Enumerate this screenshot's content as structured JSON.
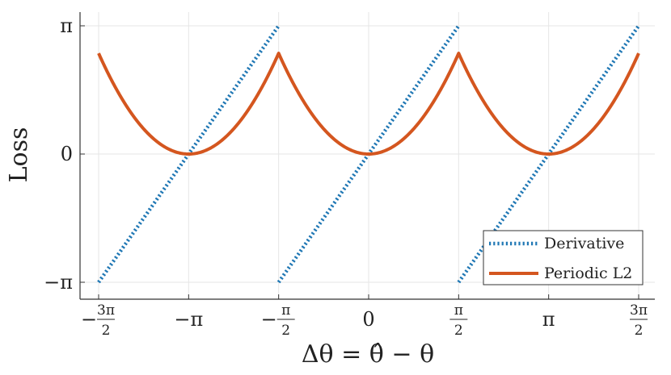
{
  "chart_data": {
    "type": "line",
    "xlabel": "Δθ = θ̂ − θ",
    "ylabel": "Loss",
    "xlim": [
      -4.712389,
      4.712389
    ],
    "ylim": [
      -3.141593,
      3.141593
    ],
    "grid": true,
    "legend_position": "bottom-right",
    "x_ticks": [
      {
        "value": -4.712389,
        "sign": "−",
        "num": "3π",
        "den": "2"
      },
      {
        "value": -3.141593,
        "label": "−π"
      },
      {
        "value": -1.570796,
        "sign": "−",
        "num": "π",
        "den": "2"
      },
      {
        "value": 0,
        "label": "0"
      },
      {
        "value": 1.570796,
        "sign": "",
        "num": "π",
        "den": "2"
      },
      {
        "value": 3.141593,
        "label": "π"
      },
      {
        "value": 4.712389,
        "sign": "",
        "num": "3π",
        "den": "2"
      }
    ],
    "y_ticks": [
      {
        "value": -3.141593,
        "label": "−π"
      },
      {
        "value": 0,
        "label": "0"
      },
      {
        "value": 3.141593,
        "label": "π"
      }
    ],
    "series": [
      {
        "name": "Derivative",
        "color": "#1f77b4",
        "style": "dotted",
        "segments": [
          [
            [
              -4.712389,
              -3.141593
            ],
            [
              -1.570796,
              3.141593
            ]
          ],
          [
            [
              -1.570796,
              -3.141593
            ],
            [
              1.570796,
              3.141593
            ]
          ],
          [
            [
              1.570796,
              -3.141593
            ],
            [
              4.712389,
              3.141593
            ]
          ]
        ]
      },
      {
        "name": "Periodic L2",
        "color": "#d4561f",
        "style": "solid",
        "function": "(wrap(x))^2, wrap to [-π/2, π/2]",
        "sampled": {
          "x": [
            -4.712,
            -4.32,
            -3.927,
            -3.534,
            -3.142,
            -2.749,
            -2.356,
            -1.963,
            -1.571,
            -1.178,
            -0.785,
            -0.393,
            0,
            0.393,
            0.785,
            1.178,
            1.571,
            1.963,
            2.356,
            2.749,
            3.142,
            3.534,
            3.927,
            4.32,
            4.712
          ],
          "y": [
            2.467,
            1.388,
            0.617,
            0.154,
            0,
            0.154,
            0.617,
            1.388,
            2.467,
            1.388,
            0.617,
            0.154,
            0,
            0.154,
            0.617,
            1.388,
            2.467,
            1.388,
            0.617,
            0.154,
            0,
            0.154,
            0.617,
            1.388,
            2.467
          ]
        }
      }
    ]
  }
}
